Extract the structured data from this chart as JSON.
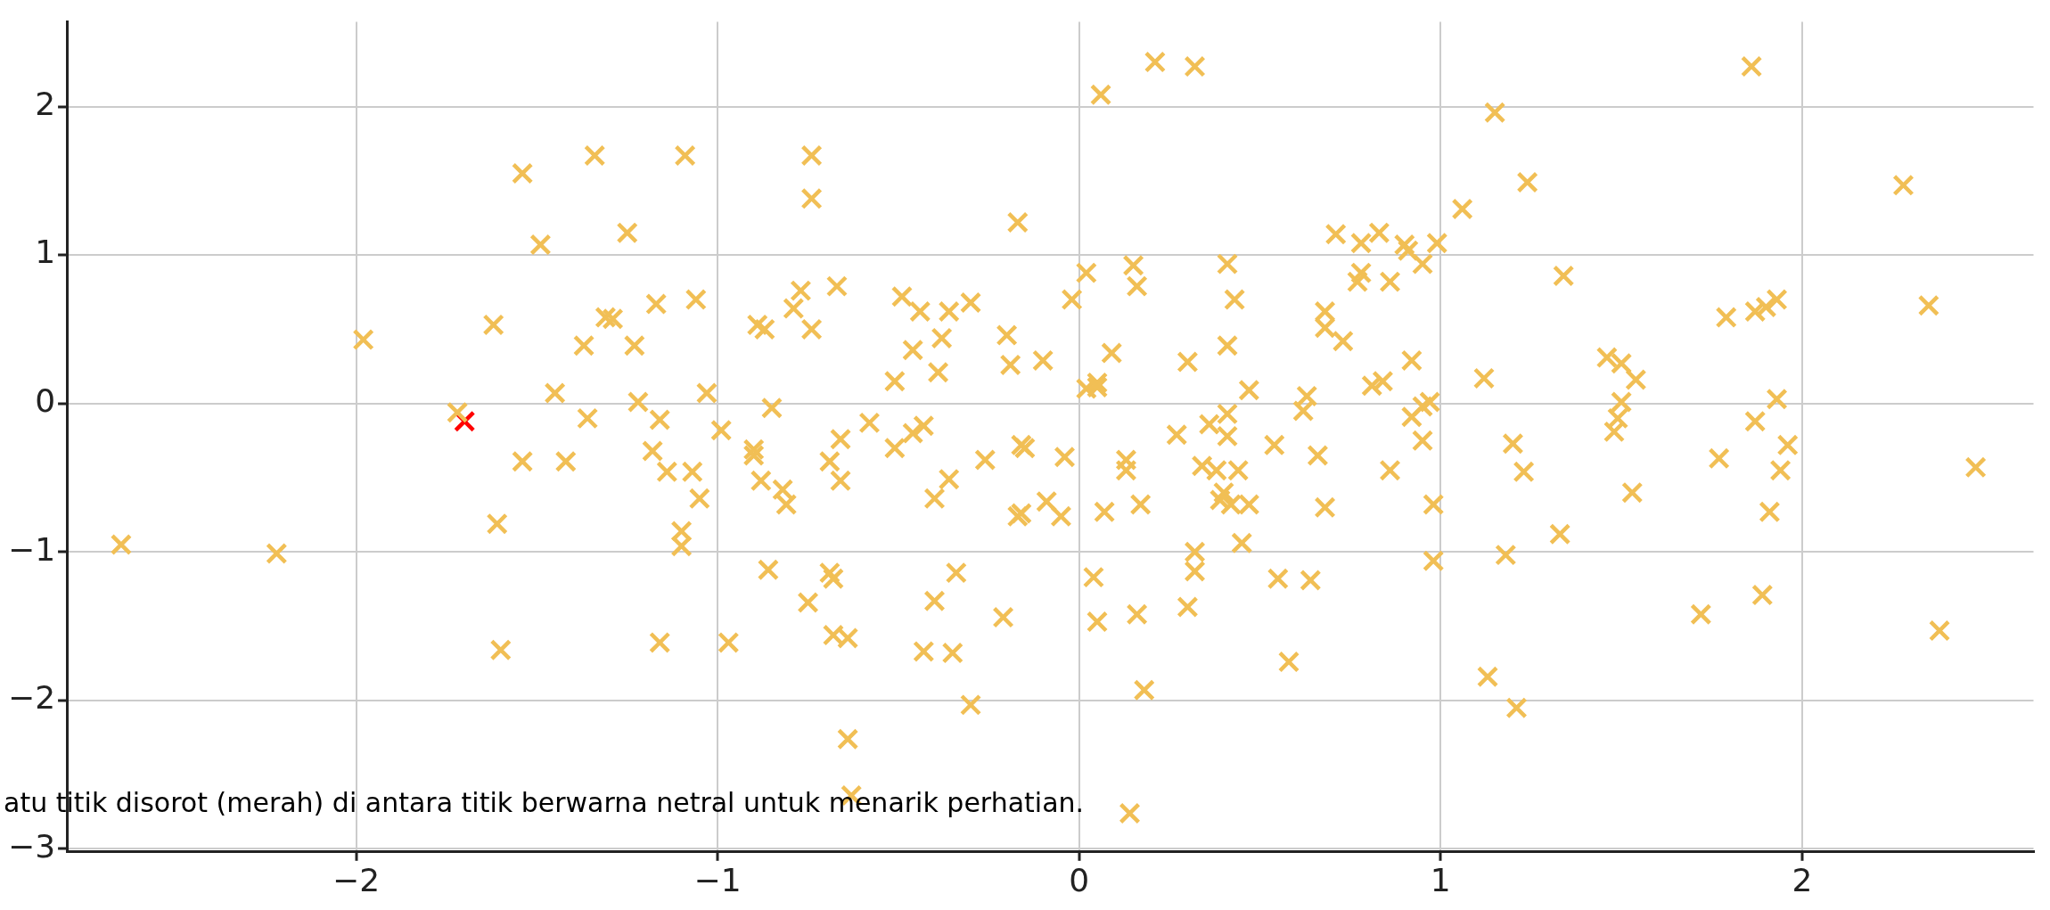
{
  "chart_data": {
    "type": "scatter",
    "marker": "cross",
    "grid": true,
    "legend": false,
    "xlim": [
      -2.8,
      2.64
    ],
    "ylim": [
      -3.02,
      2.57
    ],
    "xticks": [
      {
        "value": -2,
        "label": "−2"
      },
      {
        "value": -1,
        "label": "−1"
      },
      0,
      1,
      2
    ],
    "yticks": [
      {
        "value": -3,
        "label": "−3"
      },
      {
        "value": -2,
        "label": "−2"
      },
      {
        "value": -1,
        "label": "−1"
      },
      0,
      1,
      2
    ],
    "annotations": [
      "atu titik disorot (merah) di antara titik berwarna netral untuk menarik perhatian."
    ],
    "series": [
      {
        "color": "#f1bf55",
        "x": [
          -2.65,
          -2.22,
          -1.98,
          -1.72,
          -1.62,
          -1.61,
          -1.6,
          -1.54,
          -1.54,
          -1.49,
          -1.45,
          -1.42,
          -1.37,
          -1.34,
          -1.31,
          -1.29,
          -1.36,
          -1.25,
          -1.23,
          -1.22,
          -1.17,
          -1.16,
          -1.18,
          -1.14,
          -1.16,
          -1.09,
          -1.06,
          -1.1,
          -1.1,
          -1.07,
          -1.05,
          -1.03,
          -0.99,
          -0.97,
          -0.9,
          -0.9,
          -0.89,
          -0.87,
          -0.85,
          -0.88,
          -0.86,
          -0.82,
          -0.81,
          -0.79,
          -0.77,
          -0.74,
          -0.74,
          -0.74,
          -0.75,
          -0.69,
          -0.68,
          -0.69,
          -0.67,
          -0.66,
          -0.66,
          -0.68,
          -0.64,
          -0.64,
          -0.63,
          -0.58,
          -0.51,
          -0.51,
          -0.49,
          -0.46,
          -0.46,
          -0.44,
          -0.43,
          -0.43,
          -0.4,
          -0.4,
          -0.39,
          -0.38,
          -0.36,
          -0.35,
          -0.34,
          -0.36,
          -0.3,
          -0.3,
          -0.26,
          -0.21,
          -0.2,
          -0.19,
          -0.17,
          -0.16,
          -0.17,
          -0.16,
          -0.15,
          -0.1,
          -0.09,
          -0.05,
          -0.04,
          -0.02,
          0.02,
          0.02,
          0.05,
          0.05,
          0.04,
          0.05,
          0.06,
          0.07,
          0.09,
          0.13,
          0.13,
          0.15,
          0.16,
          0.16,
          0.17,
          0.18,
          0.14,
          0.21,
          0.32,
          0.27,
          0.3,
          0.3,
          0.32,
          0.32,
          0.34,
          0.36,
          0.38,
          0.39,
          0.4,
          0.41,
          0.41,
          0.41,
          0.41,
          0.42,
          0.43,
          0.44,
          0.45,
          0.47,
          0.47,
          0.54,
          0.55,
          0.58,
          0.63,
          0.62,
          0.64,
          0.66,
          0.68,
          0.68,
          0.68,
          0.71,
          0.73,
          0.77,
          0.78,
          0.78,
          0.81,
          0.83,
          0.84,
          0.86,
          0.86,
          0.9,
          0.91,
          0.92,
          0.92,
          0.95,
          0.95,
          0.95,
          0.97,
          0.98,
          0.99,
          0.98,
          1.06,
          1.12,
          1.13,
          1.15,
          1.18,
          1.2,
          1.21,
          1.24,
          1.23,
          1.34,
          1.33,
          1.46,
          1.48,
          1.49,
          1.5,
          1.5,
          1.54,
          1.53,
          1.72,
          1.77,
          1.79,
          1.86,
          1.87,
          1.87,
          1.89,
          1.9,
          1.91,
          1.93,
          1.93,
          1.94,
          1.96,
          2.28,
          2.35,
          2.38,
          2.48
        ],
        "values": [
          -0.95,
          -1.01,
          0.43,
          -0.06,
          0.53,
          -0.81,
          -1.66,
          1.55,
          -0.39,
          1.07,
          0.07,
          -0.39,
          0.39,
          1.67,
          0.58,
          0.57,
          -0.1,
          1.15,
          0.39,
          0.01,
          0.67,
          -0.11,
          -0.32,
          -0.46,
          -1.61,
          1.67,
          0.7,
          -0.86,
          -0.96,
          -0.46,
          -0.64,
          0.07,
          -0.18,
          -1.61,
          -0.31,
          -0.35,
          0.53,
          0.5,
          -0.03,
          -0.52,
          -1.12,
          -0.58,
          -0.68,
          0.64,
          0.76,
          1.67,
          1.38,
          0.5,
          -1.34,
          -1.14,
          -1.18,
          -0.39,
          0.79,
          -0.24,
          -0.52,
          -1.56,
          -1.58,
          -2.26,
          -2.64,
          -0.13,
          0.15,
          -0.3,
          0.72,
          0.36,
          -0.2,
          0.62,
          -0.15,
          -1.67,
          -1.33,
          -0.64,
          0.21,
          0.44,
          0.62,
          -1.68,
          -1.14,
          -0.51,
          -2.03,
          0.68,
          -0.38,
          -1.44,
          0.46,
          0.26,
          1.22,
          -0.74,
          -0.76,
          -0.28,
          -0.3,
          0.29,
          -0.66,
          -0.76,
          -0.36,
          0.7,
          0.88,
          0.1,
          0.14,
          0.11,
          -1.17,
          -1.47,
          2.08,
          -0.73,
          0.34,
          -0.45,
          -0.38,
          0.93,
          0.79,
          -1.42,
          -0.68,
          -1.93,
          -2.76,
          2.3,
          2.27,
          -0.21,
          0.28,
          -1.37,
          -1,
          -1.13,
          -0.42,
          -0.14,
          -0.45,
          -0.65,
          -0.6,
          0.39,
          0.94,
          -0.07,
          -0.22,
          -0.68,
          0.7,
          -0.45,
          -0.94,
          0.09,
          -0.68,
          -0.28,
          -1.18,
          -1.74,
          0.05,
          -0.05,
          -1.19,
          -0.35,
          0.62,
          0.51,
          -0.7,
          1.14,
          0.42,
          0.82,
          0.88,
          1.08,
          0.12,
          1.15,
          0.15,
          0.82,
          -0.45,
          1.07,
          1.03,
          0.29,
          -0.09,
          0.94,
          -0.02,
          -0.25,
          0.01,
          -0.68,
          1.08,
          -1.06,
          1.31,
          0.17,
          -1.84,
          1.96,
          -1.02,
          -0.27,
          -2.05,
          1.49,
          -0.46,
          0.86,
          -0.88,
          0.31,
          -0.19,
          -0.1,
          0.27,
          0.01,
          0.16,
          -0.6,
          -1.42,
          -0.37,
          0.58,
          2.27,
          0.62,
          -0.12,
          -1.29,
          0.65,
          -0.73,
          0.7,
          0.03,
          -0.45,
          -0.28,
          1.47,
          0.66,
          -1.53,
          -0.43
        ]
      },
      {
        "color": "#ff0000",
        "x": [
          -1.7
        ],
        "values": [
          -0.12
        ]
      }
    ]
  }
}
